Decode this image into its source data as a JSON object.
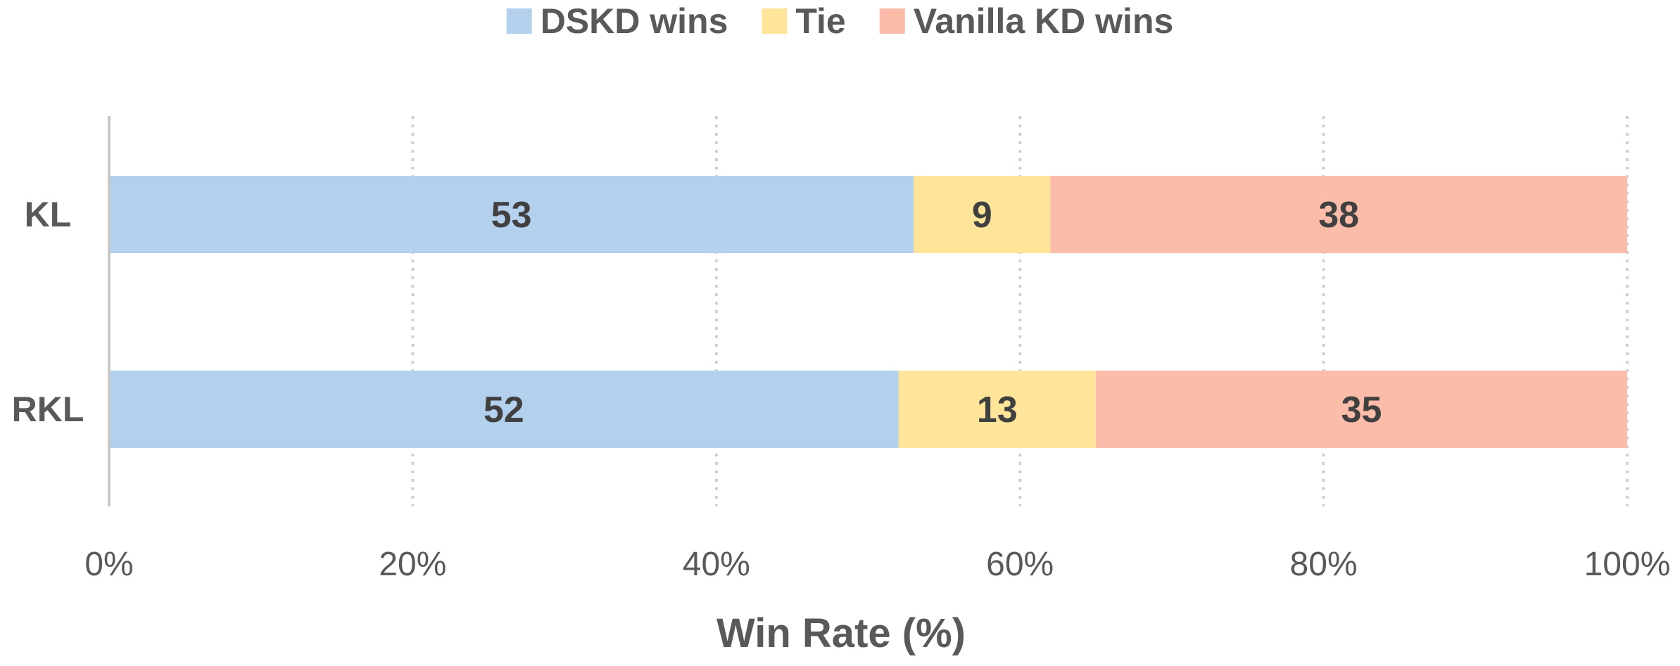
{
  "chart_data": {
    "type": "bar",
    "orientation": "horizontal",
    "stacked": "percent",
    "categories": [
      "KL",
      "RKL"
    ],
    "series": [
      {
        "name": "DSKD wins",
        "color": "#b3d0ec",
        "values": [
          53,
          52
        ]
      },
      {
        "name": "Tie",
        "color": "#fee599",
        "values": [
          9,
          13
        ]
      },
      {
        "name": "Vanilla KD wins",
        "color": "#fbbda9",
        "values": [
          38,
          35
        ]
      }
    ],
    "xlabel": "Win Rate (%)",
    "xlim": [
      0,
      100
    ],
    "xticks": [
      "0%",
      "20%",
      "40%",
      "60%",
      "80%",
      "100%"
    ],
    "grid": "vertical dotted",
    "legend": "top"
  }
}
